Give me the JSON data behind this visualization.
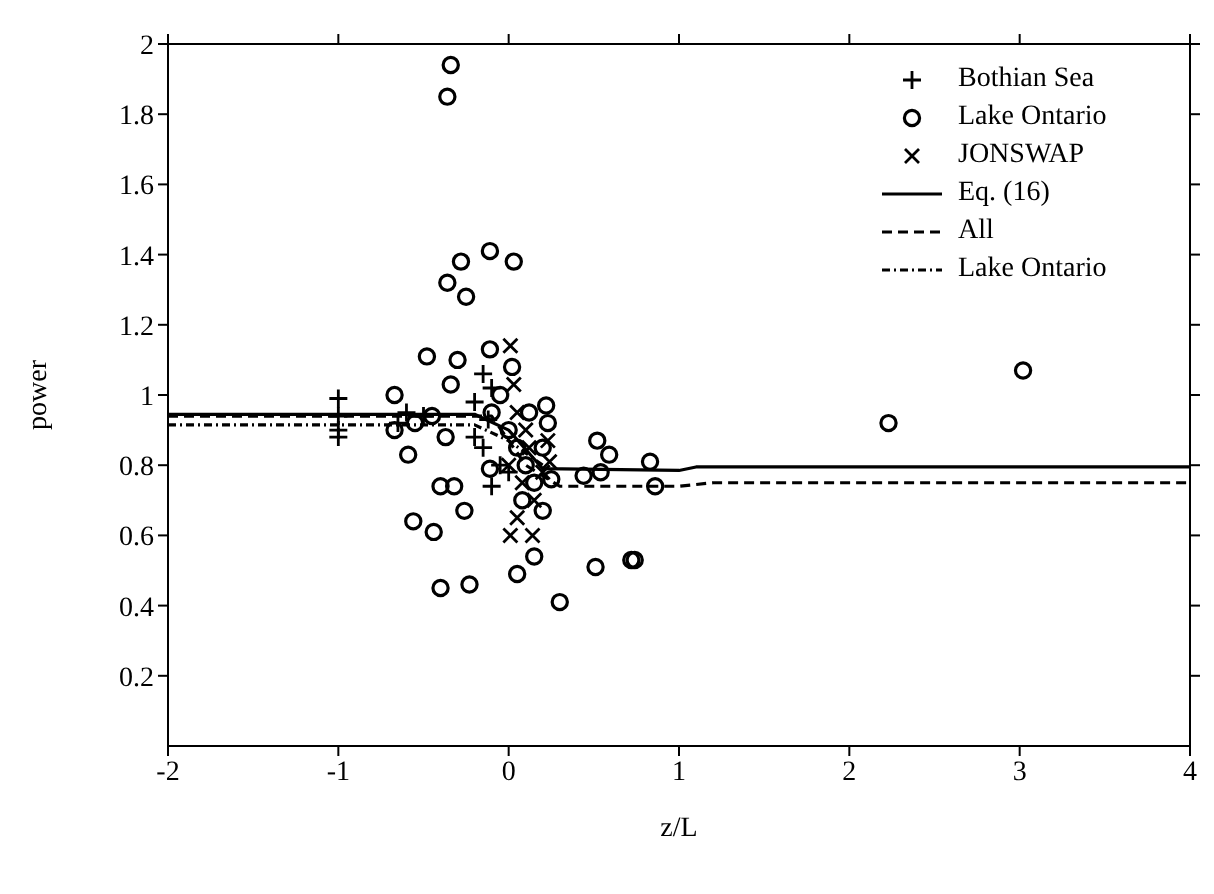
{
  "chart_data": {
    "type": "scatter",
    "xlabel": "z/L",
    "ylabel": "power",
    "xlim": [
      -2,
      4
    ],
    "xticks": [
      -2,
      -1,
      0,
      1,
      2,
      3,
      4
    ],
    "ylim": [
      0,
      2
    ],
    "yticks": [
      0.2,
      0.4,
      0.6,
      0.8,
      1,
      1.2,
      1.4,
      1.6,
      1.8,
      2
    ],
    "grid": false,
    "legend": "top right",
    "series": [
      {
        "name": "Bothian Sea",
        "marker": "plus",
        "color": "#000000",
        "x": [
          -1,
          -1,
          -1,
          -1,
          -0.6,
          -0.65,
          -0.5,
          -0.15,
          -0.1,
          -0.2,
          -0.12,
          -0.2,
          -0.15,
          -0.05,
          -0.1,
          0
        ],
        "values": [
          0.99,
          0.94,
          0.9,
          0.88,
          0.95,
          0.92,
          0.94,
          1.06,
          1.02,
          0.98,
          0.93,
          0.88,
          0.85,
          0.8,
          0.74,
          0.78
        ]
      },
      {
        "name": "Lake Ontario",
        "marker": "circle",
        "color": "#000000",
        "x": [
          -0.34,
          -0.36,
          -0.28,
          -0.11,
          0.03,
          -0.36,
          -0.25,
          -0.48,
          -0.3,
          -0.11,
          0.02,
          -0.34,
          -0.67,
          0.22,
          -0.67,
          -0.59,
          -0.37,
          -0.4,
          -0.32,
          -0.26,
          -0.56,
          -0.44,
          -0.4,
          -0.23,
          0.05,
          0.15,
          0.3,
          0.51,
          0.72,
          0.74,
          0.52,
          0.59,
          0.44,
          0.54,
          0.83,
          0.86,
          0.25,
          0.2,
          0.23,
          -0.11,
          3.02,
          2.23,
          -0.1,
          0,
          0.05,
          0.1,
          0.15,
          0.08,
          0.12,
          -0.05,
          0.2,
          -0.45,
          -0.55
        ],
        "values": [
          1.94,
          1.85,
          1.38,
          1.41,
          1.38,
          1.32,
          1.28,
          1.11,
          1.1,
          1.13,
          1.08,
          1.03,
          1,
          0.97,
          0.9,
          0.83,
          0.88,
          0.74,
          0.74,
          0.67,
          0.64,
          0.61,
          0.45,
          0.46,
          0.49,
          0.54,
          0.41,
          0.51,
          0.53,
          0.53,
          0.87,
          0.83,
          0.77,
          0.78,
          0.81,
          0.74,
          0.76,
          0.67,
          0.92,
          0.79,
          1.07,
          0.92,
          0.95,
          0.9,
          0.85,
          0.8,
          0.75,
          0.7,
          0.95,
          1,
          0.85,
          0.94,
          0.92
        ]
      },
      {
        "name": "JONSWAP",
        "marker": "cross",
        "color": "#000000",
        "x": [
          0.01,
          0.03,
          0.01,
          0.14,
          0.23,
          0.24,
          0.05,
          0.1,
          0,
          0.08,
          0.15,
          0.05,
          0.12,
          0.2
        ],
        "values": [
          1.14,
          1.03,
          0.6,
          0.6,
          0.87,
          0.81,
          0.95,
          0.9,
          0.8,
          0.75,
          0.7,
          0.65,
          0.85,
          0.78
        ]
      },
      {
        "name": "Eq. (16)",
        "type": "line",
        "marker": "none",
        "line_style": "solid",
        "color": "#000000",
        "x": [
          -2,
          -0.2,
          0,
          0.2,
          1,
          1.1,
          4
        ],
        "values": [
          0.945,
          0.945,
          0.9,
          0.79,
          0.785,
          0.795,
          0.795
        ]
      },
      {
        "name": "All",
        "type": "line",
        "marker": "none",
        "line_style": "dashed",
        "color": "#000000",
        "x": [
          -2,
          -0.1,
          0.1,
          0.3,
          1,
          1.2,
          4
        ],
        "values": [
          0.94,
          0.94,
          0.8,
          0.74,
          0.74,
          0.75,
          0.75
        ]
      },
      {
        "name": "Lake Ontario",
        "type": "line",
        "marker": "none",
        "line_style": "dotted",
        "color": "#000000",
        "x": [
          -2,
          -0.2,
          0,
          0.2
        ],
        "values": [
          0.915,
          0.915,
          0.87,
          0.8
        ]
      }
    ]
  }
}
